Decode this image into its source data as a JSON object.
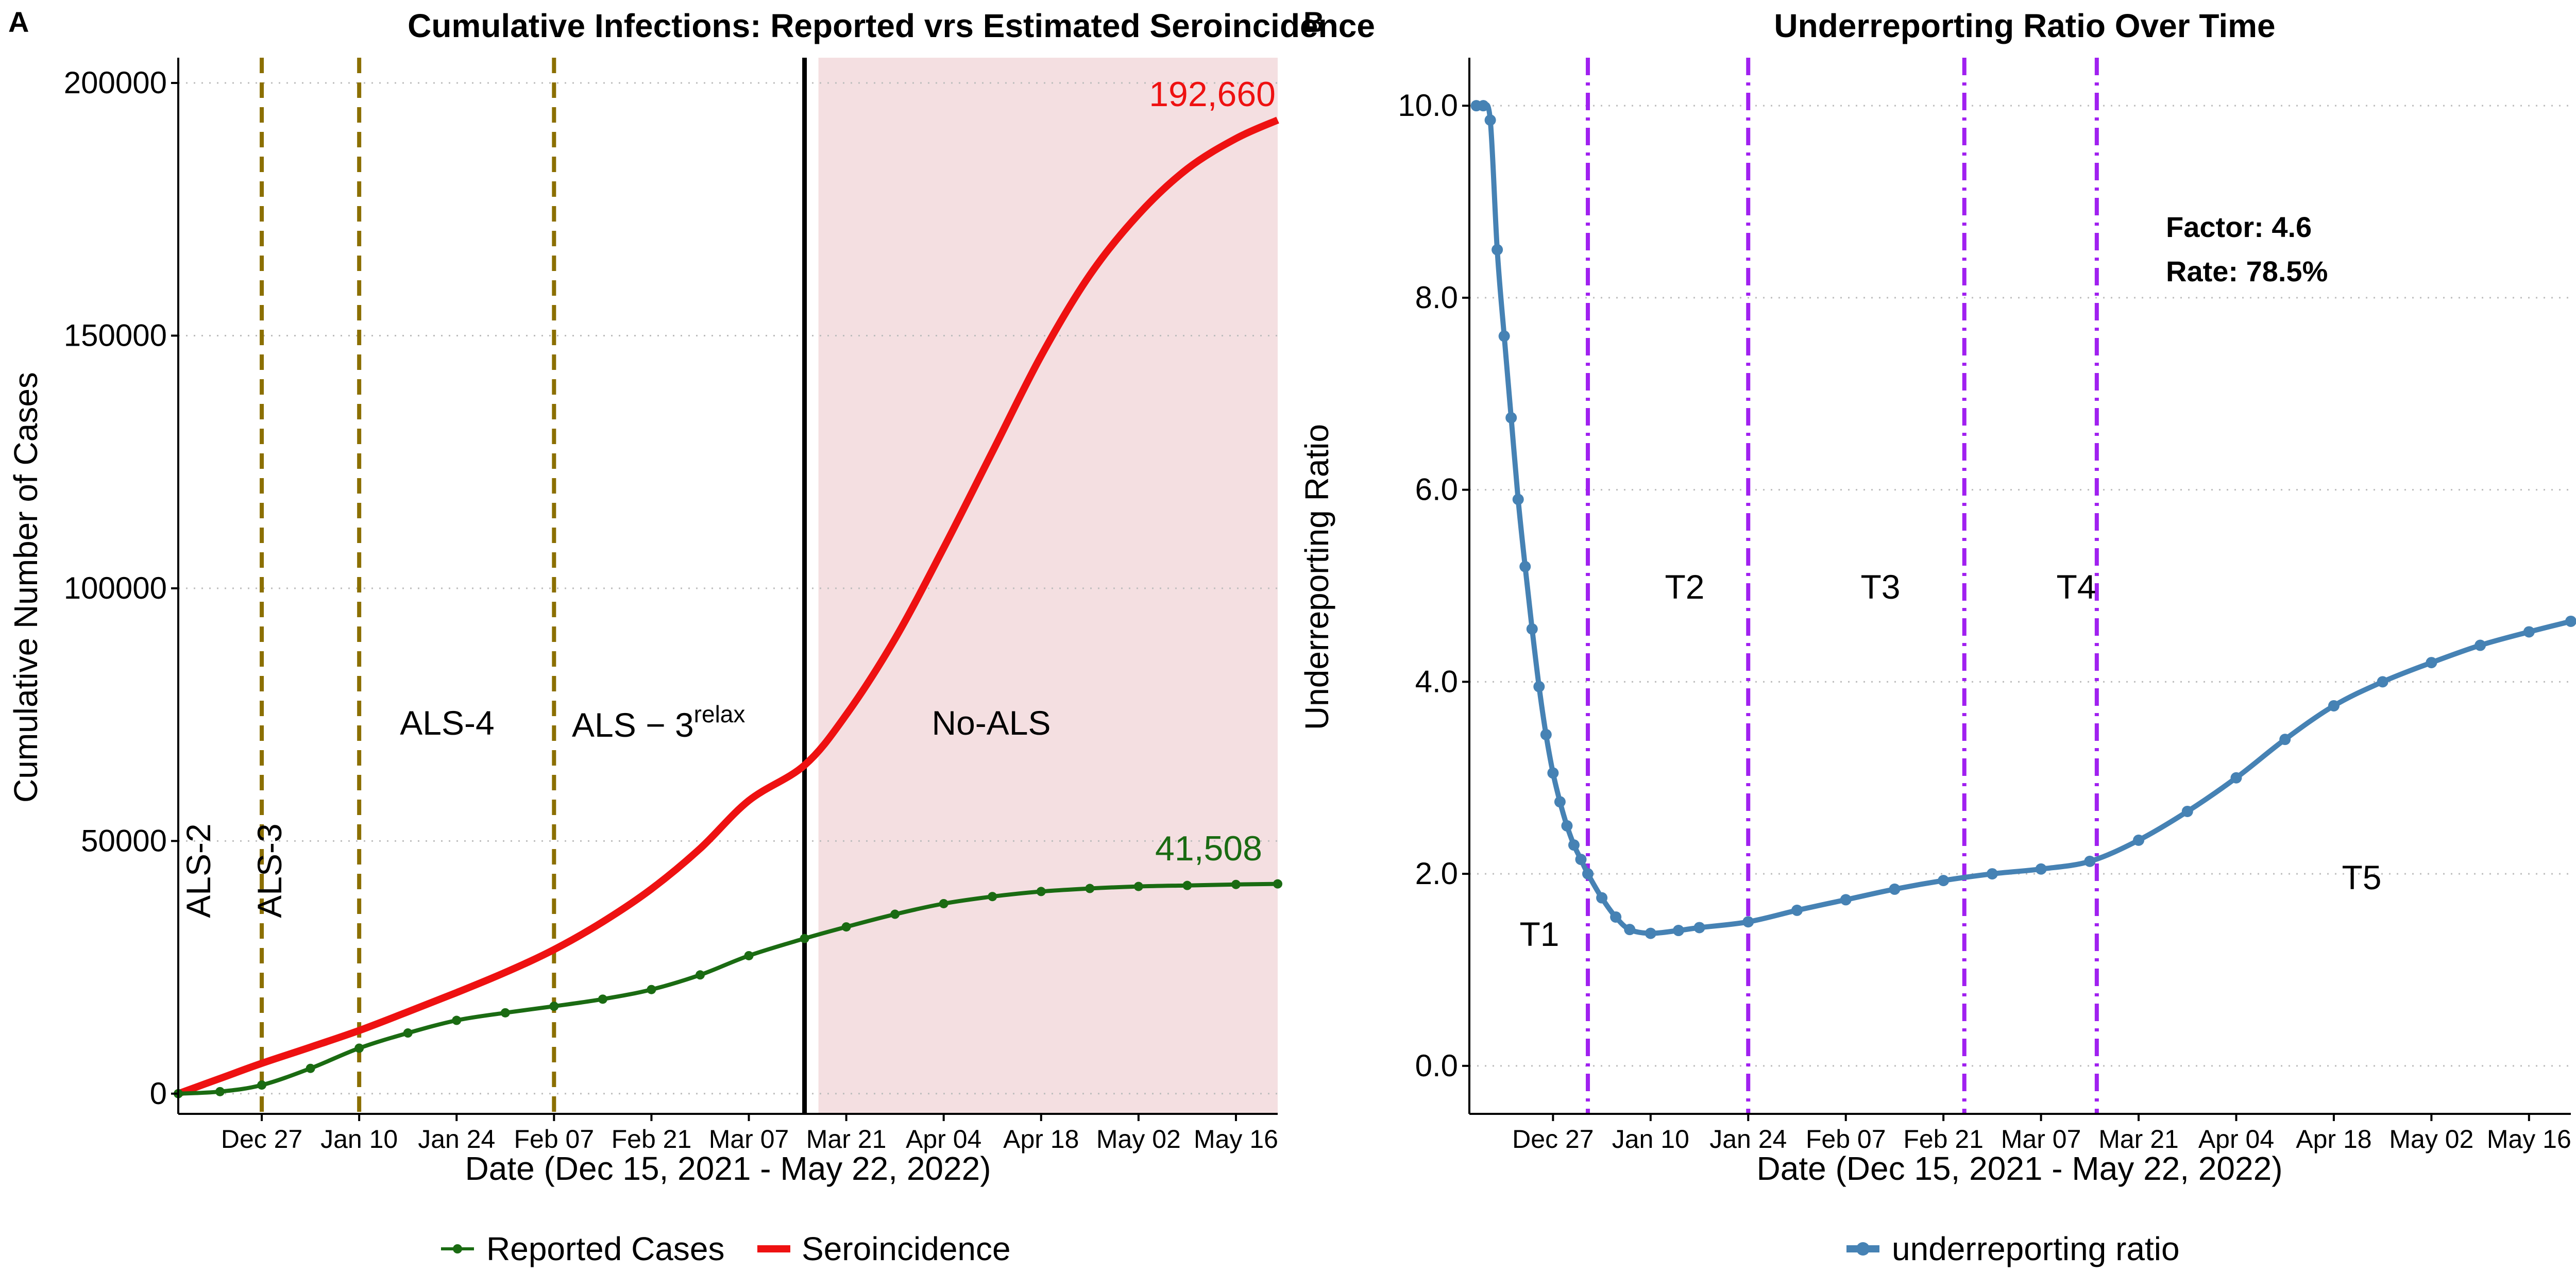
{
  "panel_a": {
    "letter": "A",
    "title": "Cumulative Infections: Reported vrs Estimated Seroincidence",
    "xlabel": "Date (Dec 15, 2021 - May 22, 2022)",
    "ylabel": "Cumulative Number of Cases",
    "end_label_sero": "192,660",
    "end_label_reported": "41,508",
    "region_labels": {
      "als2": "ALS-2",
      "als3": "ALS-3",
      "als4": "ALS-4",
      "als3relax_base": "ALS − 3",
      "als3relax_sup": "relax",
      "noals": "No-ALS"
    },
    "legend": {
      "reported": "Reported Cases",
      "sero": "Seroincidence"
    }
  },
  "panel_b": {
    "letter": "B",
    "title": "Underreporting Ratio Over Time",
    "xlabel": "Date (Dec 15, 2021 - May 22, 2022)",
    "ylabel": "Underreporting Ratio",
    "factor_text": "Factor: 4.6",
    "rate_text": "Rate: 78.5%",
    "period_labels": {
      "t1": "T1",
      "t2": "T2",
      "t3": "T3",
      "t4": "T4",
      "t5": "T5"
    },
    "legend": {
      "ratio": "underreporting ratio"
    }
  },
  "colors": {
    "reported": "#1a6b12",
    "sero": "#ee1111",
    "ratio": "#4682b4",
    "als_lines": "#8b6f00",
    "period_lines": "#a020f0",
    "noals_shade": "#f4dfe1",
    "cutoff_line": "#000000",
    "reported_label": "#1a6b12",
    "sero_label": "#ee1111"
  },
  "chart_data": [
    {
      "type": "line",
      "title": "Cumulative Infections: Reported vrs Estimated Seroincidence",
      "xlabel": "Date (Dec 15, 2021 - May 22, 2022)",
      "ylabel": "Cumulative Number of Cases",
      "xlim": [
        "2021-12-15",
        "2022-05-22"
      ],
      "ylim": [
        -4000,
        205000
      ],
      "x_ticks": [
        "Dec 27",
        "Jan 10",
        "Jan 24",
        "Feb 07",
        "Feb 21",
        "Mar 07",
        "Mar 21",
        "Apr 04",
        "Apr 18",
        "May 02",
        "May 16"
      ],
      "x_tick_dates": [
        "2021-12-27",
        "2022-01-10",
        "2022-01-24",
        "2022-02-07",
        "2022-02-21",
        "2022-03-07",
        "2022-03-21",
        "2022-04-04",
        "2022-04-18",
        "2022-05-02",
        "2022-05-16"
      ],
      "y_ticks": [
        0,
        50000,
        100000,
        150000,
        200000
      ],
      "y_tick_labels": [
        "0",
        "50000",
        "100000",
        "150000",
        "200000"
      ],
      "grid": "horizontal-dotted",
      "legend_position": "bottom",
      "vertical_lines_dashed": [
        "2021-12-27",
        "2022-01-10",
        "2022-02-07"
      ],
      "vertical_line_solid": "2022-03-15",
      "shaded_region": [
        "2022-03-17",
        "2022-05-22"
      ],
      "series": [
        {
          "name": "Seroincidence",
          "x": [
            "2021-12-15",
            "2021-12-21",
            "2021-12-27",
            "2022-01-03",
            "2022-01-10",
            "2022-01-17",
            "2022-01-24",
            "2022-01-31",
            "2022-02-07",
            "2022-02-14",
            "2022-02-21",
            "2022-02-28",
            "2022-03-07",
            "2022-03-15",
            "2022-03-21",
            "2022-03-28",
            "2022-04-04",
            "2022-04-11",
            "2022-04-18",
            "2022-04-25",
            "2022-05-02",
            "2022-05-09",
            "2022-05-16",
            "2022-05-22"
          ],
          "values": [
            0,
            3000,
            6000,
            9200,
            12500,
            16200,
            20000,
            24000,
            28500,
            34000,
            40500,
            48500,
            58000,
            65000,
            75000,
            90000,
            108000,
            127000,
            146000,
            162000,
            174000,
            183000,
            189000,
            192660
          ]
        },
        {
          "name": "Reported Cases",
          "x": [
            "2021-12-15",
            "2021-12-21",
            "2021-12-27",
            "2022-01-03",
            "2022-01-10",
            "2022-01-17",
            "2022-01-24",
            "2022-01-31",
            "2022-02-07",
            "2022-02-14",
            "2022-02-21",
            "2022-02-28",
            "2022-03-07",
            "2022-03-15",
            "2022-03-21",
            "2022-03-28",
            "2022-04-04",
            "2022-04-11",
            "2022-04-18",
            "2022-04-25",
            "2022-05-02",
            "2022-05-09",
            "2022-05-16",
            "2022-05-22"
          ],
          "values": [
            0,
            400,
            1700,
            5000,
            9000,
            12000,
            14500,
            16000,
            17300,
            18700,
            20600,
            23500,
            27300,
            30700,
            33000,
            35500,
            37600,
            39000,
            40000,
            40600,
            41000,
            41200,
            41400,
            41508
          ]
        }
      ]
    },
    {
      "type": "line",
      "title": "Underreporting Ratio Over Time",
      "xlabel": "Date (Dec 15, 2021 - May 22, 2022)",
      "ylabel": "Underreporting Ratio",
      "xlim": [
        "2021-12-15",
        "2022-05-22"
      ],
      "ylim": [
        -0.5,
        10.5
      ],
      "x_ticks": [
        "Dec 27",
        "Jan 10",
        "Jan 24",
        "Feb 07",
        "Feb 21",
        "Mar 07",
        "Mar 21",
        "Apr 04",
        "Apr 18",
        "May 02",
        "May 16"
      ],
      "x_tick_dates": [
        "2021-12-27",
        "2022-01-10",
        "2022-01-24",
        "2022-02-07",
        "2022-02-21",
        "2022-03-07",
        "2022-03-21",
        "2022-04-04",
        "2022-04-18",
        "2022-05-02",
        "2022-05-16"
      ],
      "y_ticks": [
        0,
        2,
        4,
        6,
        8,
        10
      ],
      "y_tick_labels": [
        "0.0",
        "2.0",
        "4.0",
        "6.0",
        "8.0",
        "10.0"
      ],
      "grid": "horizontal-dotted",
      "legend_position": "bottom",
      "vertical_lines_dotdash": [
        "2022-01-01",
        "2022-01-24",
        "2022-02-24",
        "2022-03-15"
      ],
      "series": [
        {
          "name": "underreporting ratio",
          "x": [
            "2021-12-16",
            "2021-12-17",
            "2021-12-18",
            "2021-12-19",
            "2021-12-20",
            "2021-12-21",
            "2021-12-22",
            "2021-12-23",
            "2021-12-24",
            "2021-12-25",
            "2021-12-26",
            "2021-12-27",
            "2021-12-28",
            "2021-12-29",
            "2021-12-30",
            "2021-12-31",
            "2022-01-01",
            "2022-01-03",
            "2022-01-05",
            "2022-01-07",
            "2022-01-10",
            "2022-01-14",
            "2022-01-17",
            "2022-01-24",
            "2022-01-31",
            "2022-02-07",
            "2022-02-14",
            "2022-02-21",
            "2022-02-28",
            "2022-03-07",
            "2022-03-14",
            "2022-03-21",
            "2022-03-28",
            "2022-04-04",
            "2022-04-11",
            "2022-04-18",
            "2022-04-25",
            "2022-05-02",
            "2022-05-09",
            "2022-05-16",
            "2022-05-22"
          ],
          "values": [
            10.0,
            10.0,
            9.85,
            8.5,
            7.6,
            6.75,
            5.9,
            5.2,
            4.55,
            3.95,
            3.45,
            3.05,
            2.75,
            2.5,
            2.3,
            2.15,
            2.0,
            1.75,
            1.55,
            1.42,
            1.38,
            1.41,
            1.44,
            1.5,
            1.62,
            1.73,
            1.84,
            1.93,
            2.0,
            2.05,
            2.13,
            2.35,
            2.65,
            3.0,
            3.4,
            3.75,
            4.0,
            4.2,
            4.38,
            4.52,
            4.63
          ]
        }
      ]
    }
  ]
}
